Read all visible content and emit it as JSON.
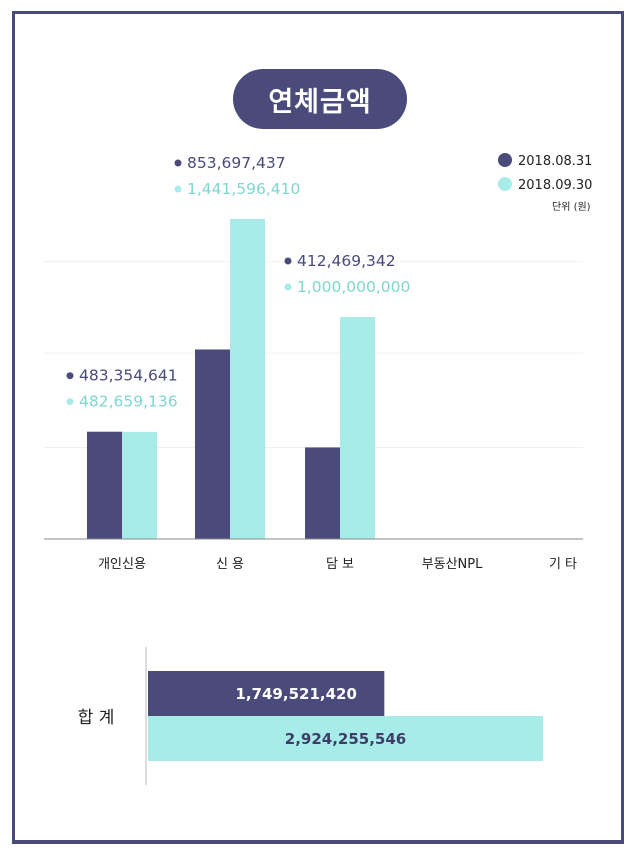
{
  "title": "연체금액",
  "colors": {
    "series1": "#4a4b7a",
    "series2": "#a7ece8",
    "frame": "#4a4b7a"
  },
  "unit": "단위 (원)",
  "chart_data": [
    {
      "type": "bar",
      "title": "연체금액",
      "categories": [
        "개인신용",
        "신 용",
        "담 보",
        "부동산NPL",
        "기 타"
      ],
      "series": [
        {
          "name": "2018.08.31",
          "values": [
            483354641,
            853697437,
            412469342,
            0,
            0
          ],
          "labels": [
            "483,354,641",
            "853,697,437",
            "412,469,342",
            "",
            ""
          ]
        },
        {
          "name": "2018.09.30",
          "values": [
            482659136,
            1441596410,
            1000000000,
            0,
            0
          ],
          "labels": [
            "482,659,136",
            "1,441,596,410",
            "1,000,000,000",
            "",
            ""
          ]
        }
      ],
      "ylim": [
        0,
        1500000000
      ],
      "legend": "top-right"
    },
    {
      "type": "bar",
      "orientation": "horizontal",
      "categories": [
        "합 계"
      ],
      "series": [
        {
          "name": "2018.08.31",
          "values": [
            1749521420
          ],
          "label": "1,749,521,420"
        },
        {
          "name": "2018.09.30",
          "values": [
            2924255546
          ],
          "label": "2,924,255,546"
        }
      ],
      "xlim": [
        0,
        3000000000
      ]
    }
  ]
}
